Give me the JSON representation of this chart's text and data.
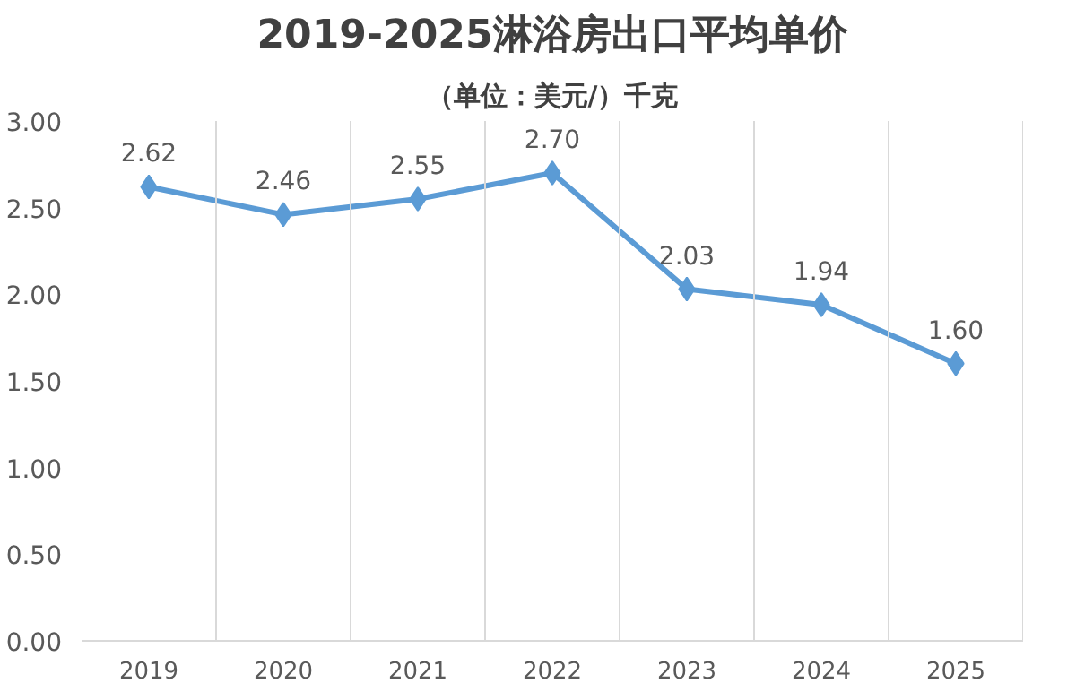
{
  "chart_data": {
    "type": "line",
    "title": "2019-2025淋浴房出口平均单价",
    "subtitle": "（单位：美元/）千克",
    "categories": [
      "2019",
      "2020",
      "2021",
      "2022",
      "2023",
      "2024",
      "2025"
    ],
    "series": [
      {
        "color": "#5b9bd5",
        "values": [
          2.62,
          2.46,
          2.55,
          2.7,
          2.03,
          1.94,
          1.6
        ],
        "value_labels": [
          "2.62",
          "2.46",
          "2.55",
          "2.70",
          "2.03",
          "1.94",
          "1.60"
        ]
      }
    ],
    "ylim": [
      0,
      3
    ],
    "yticks": [
      {
        "value": 0,
        "label": "0.00"
      },
      {
        "value": 0.5,
        "label": "0.50"
      },
      {
        "value": 1,
        "label": "1.00"
      },
      {
        "value": 1.5,
        "label": "1.50"
      },
      {
        "value": 2,
        "label": "2.00"
      },
      {
        "value": 2.5,
        "label": "2.50"
      },
      {
        "value": 3,
        "label": "3.00"
      }
    ],
    "grid": "x",
    "marker": "diamond",
    "line_style": "solid"
  }
}
